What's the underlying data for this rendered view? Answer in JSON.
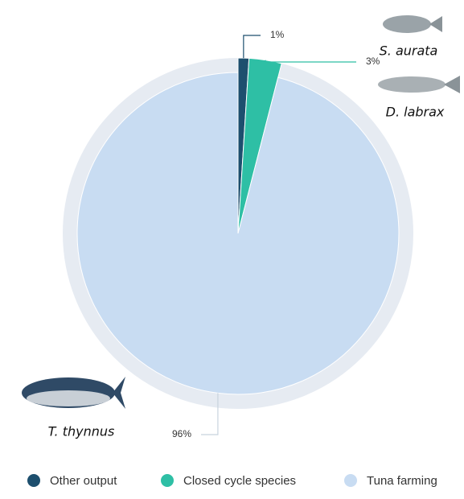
{
  "chart_data": {
    "type": "pie",
    "categories": [
      "Other output",
      "Closed cycle species",
      "Tuna farming"
    ],
    "values": [
      1,
      3,
      96
    ],
    "value_labels": [
      "1%",
      "3%",
      "96%"
    ],
    "colors": [
      "#1d4f6e",
      "#2ebfa5",
      "#c8dcf2"
    ],
    "legend": "bottom",
    "annotations": [
      "S. aurata",
      "D. labrax",
      "T. thynnus"
    ]
  }
}
